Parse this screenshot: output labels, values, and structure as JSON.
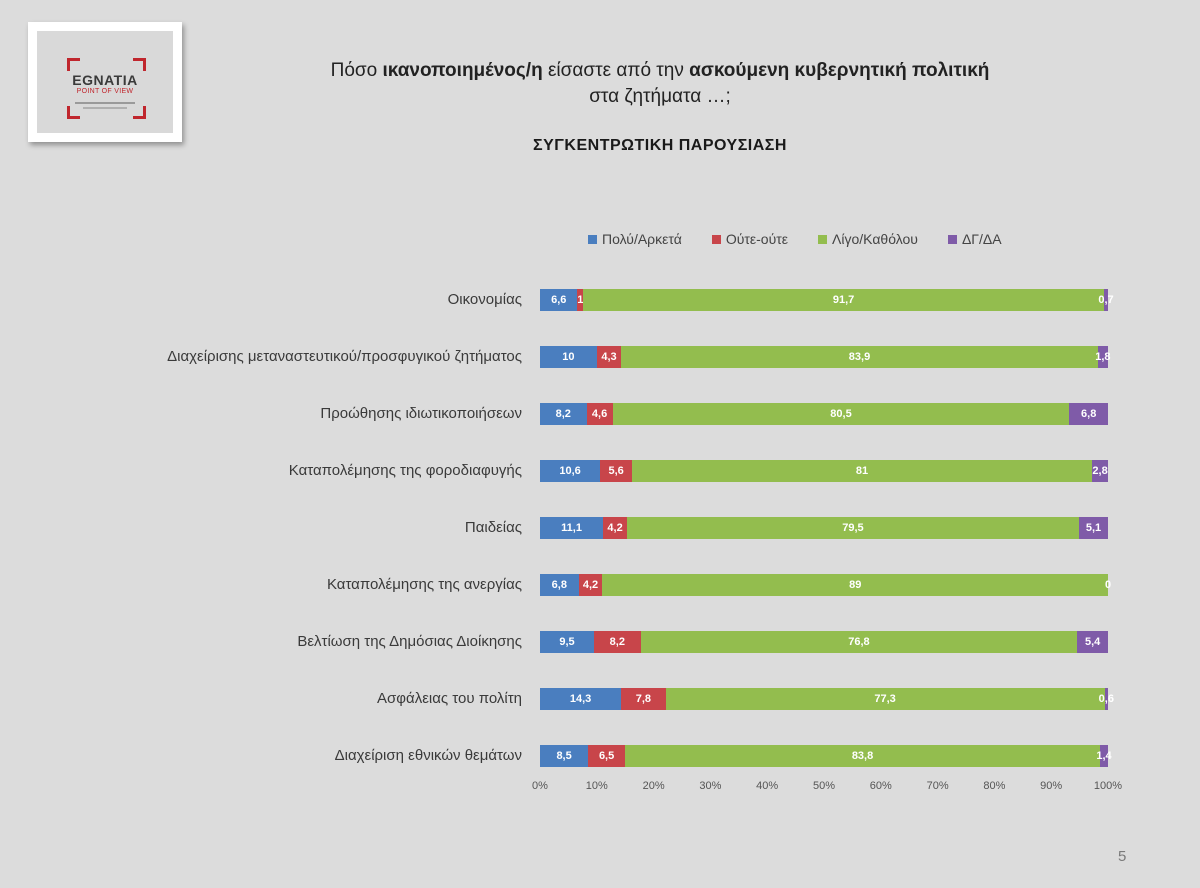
{
  "logo": {
    "name": "EGNATIA",
    "tagline": "POINT OF VIEW"
  },
  "title": {
    "part1": "Πόσο ",
    "bold1": "ικανοποιημένος/η",
    "part2": " είσαστε από την ",
    "bold2": "ασκούμενη κυβερνητική πολιτική",
    "line2": "στα ζητήματα …;"
  },
  "subtitle": "ΣΥΓΚΕΝΤΡΩΤΙΚΗ ΠΑΡΟΥΣΙΑΣΗ",
  "page_number": "5",
  "chart_data": {
    "type": "bar",
    "orientation": "horizontal",
    "stacked": "percent",
    "categories": [
      "Οικονομίας",
      "Διαχείρισης μεταναστευτικού/προσφυγικού ζητήματος",
      "Προώθησης ιδιωτικοποιήσεων",
      "Καταπολέμησης της φοροδιαφυγής",
      "Παιδείας",
      "Καταπολέμησης της ανεργίας",
      "Βελτίωση της Δημόσιας Διοίκησης",
      "Ασφάλειας του πολίτη",
      "Διαχείριση εθνικών θεμάτων"
    ],
    "series": [
      {
        "name": "Πολύ/Αρκετά",
        "color": "#4a7ebf",
        "values": [
          6.6,
          10,
          8.2,
          10.6,
          11.1,
          6.8,
          9.5,
          14.3,
          8.5
        ],
        "labels": [
          "6,6",
          "10",
          "8,2",
          "10,6",
          "11,1",
          "6,8",
          "9,5",
          "14,3",
          "8,5"
        ]
      },
      {
        "name": "Ούτε-ούτε",
        "color": "#c8454a",
        "values": [
          1,
          4.3,
          4.6,
          5.6,
          4.2,
          4.2,
          8.2,
          7.8,
          6.5
        ],
        "labels": [
          "1",
          "4,3",
          "4,6",
          "5,6",
          "4,2",
          "4,2",
          "8,2",
          "7,8",
          "6,5"
        ]
      },
      {
        "name": "Λίγο/Καθόλου",
        "color": "#93bd4e",
        "values": [
          91.7,
          83.9,
          80.5,
          81,
          79.5,
          89,
          76.8,
          77.3,
          83.8
        ],
        "labels": [
          "91,7",
          "83,9",
          "80,5",
          "81",
          "79,5",
          "89",
          "76,8",
          "77,3",
          "83,8"
        ]
      },
      {
        "name": "ΔΓ/ΔΑ",
        "color": "#7f5ba8",
        "values": [
          0.7,
          1.8,
          6.8,
          2.8,
          5.1,
          0,
          5.4,
          0.6,
          1.4
        ],
        "labels": [
          "0,7",
          "1,8",
          "6,8",
          "2,8",
          "5,1",
          "0",
          "5,4",
          "0,6",
          "1,4"
        ]
      }
    ],
    "xlim": [
      0,
      100
    ],
    "xticks": [
      "0%",
      "10%",
      "20%",
      "30%",
      "40%",
      "50%",
      "60%",
      "70%",
      "80%",
      "90%",
      "100%"
    ],
    "legend_position": "top",
    "grid": false
  }
}
